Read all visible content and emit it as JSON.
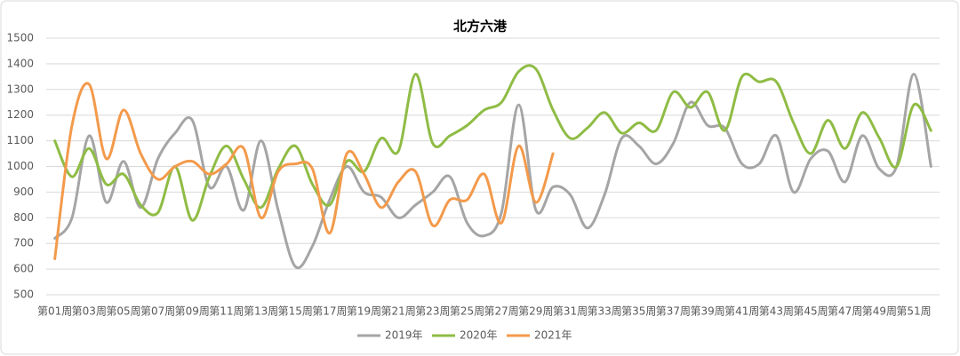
{
  "chart_data": {
    "type": "line",
    "title": "北方六港",
    "categories": [
      "第01周",
      null,
      "第03周",
      null,
      "第05周",
      null,
      "第07周",
      null,
      "第09周",
      null,
      "第11周",
      null,
      "第13周",
      null,
      "第15周",
      null,
      "第17周",
      null,
      "第19周",
      null,
      "第21周",
      null,
      "第23周",
      null,
      "第25周",
      null,
      "第27周",
      null,
      "第29周",
      null,
      "第31周",
      null,
      "第33周",
      null,
      "第35周",
      null,
      "第37周",
      null,
      "第39周",
      null,
      "第41周",
      null,
      "第43周",
      null,
      "第45周",
      null,
      "第47周",
      null,
      "第49周",
      null,
      "第51周",
      null
    ],
    "series": [
      {
        "name": "2019年",
        "color": "#a5a5a5",
        "values": [
          720,
          800,
          1120,
          860,
          1020,
          840,
          1030,
          1130,
          1180,
          920,
          1000,
          830,
          1100,
          830,
          610,
          690,
          870,
          1000,
          900,
          880,
          800,
          850,
          900,
          960,
          780,
          730,
          820,
          1240,
          830,
          920,
          890,
          760,
          890,
          1110,
          1080,
          1010,
          1090,
          1250,
          1160,
          1150,
          1010,
          1010,
          1120,
          900,
          1030,
          1060,
          940,
          1120,
          990,
          1000,
          1360,
          1000
        ]
      },
      {
        "name": "2020年",
        "color": "#8fbc45",
        "values": [
          1100,
          960,
          1070,
          930,
          970,
          850,
          820,
          1000,
          790,
          960,
          1080,
          950,
          840,
          990,
          1080,
          930,
          850,
          1020,
          980,
          1110,
          1060,
          1360,
          1090,
          1120,
          1160,
          1220,
          1250,
          1370,
          1380,
          1220,
          1110,
          1150,
          1210,
          1130,
          1170,
          1140,
          1290,
          1230,
          1290,
          1140,
          1350,
          1330,
          1330,
          1170,
          1050,
          1180,
          1070,
          1210,
          1110,
          1000,
          1240,
          1140
        ]
      },
      {
        "name": "2021年",
        "color": "#f39a4b",
        "values": [
          640,
          1160,
          1320,
          1030,
          1220,
          1050,
          950,
          1000,
          1020,
          970,
          1010,
          1070,
          800,
          980,
          1010,
          990,
          740,
          1050,
          970,
          840,
          940,
          980,
          770,
          870,
          870,
          970,
          780,
          1080,
          860,
          1050,
          null,
          null,
          null,
          null,
          null,
          null,
          null,
          null,
          null,
          null,
          null,
          null,
          null,
          null,
          null,
          null,
          null,
          null,
          null,
          null,
          null,
          null
        ]
      }
    ],
    "ylim": [
      500,
      1500
    ],
    "yticks": [
      500,
      600,
      700,
      800,
      900,
      1000,
      1100,
      1200,
      1300,
      1400,
      1500
    ],
    "grid": true,
    "legend": "bottom"
  }
}
